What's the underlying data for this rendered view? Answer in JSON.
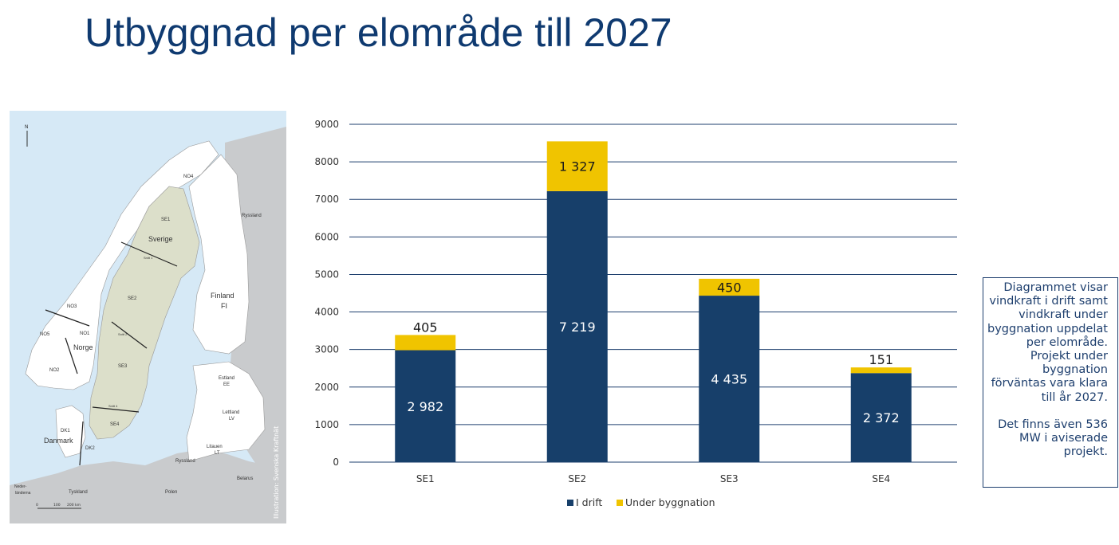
{
  "title": "Utbyggnad per elområde till 2027",
  "map": {
    "credit": "Illustration: Svenska Kraftnät",
    "compass": "N",
    "scale_labels": [
      "0",
      "100",
      "200 km"
    ],
    "region_labels": [
      "NO4",
      "SE1",
      "Sverige",
      "Snitt 1",
      "SE2",
      "NO3",
      "NO1",
      "NO5",
      "Norge",
      "Snitt 2",
      "NO2",
      "SE3",
      "Snitt 4",
      "SE4",
      "DK1",
      "Danmark",
      "DK2"
    ],
    "country_labels": [
      "Ryssland",
      "Finland",
      "FI",
      "Estland",
      "EE",
      "Lettland",
      "LV",
      "Litauen",
      "LT",
      "Ryssland",
      "Belarus",
      "Polen",
      "Tyskland",
      "Neder-",
      "länderna"
    ],
    "colors": {
      "sea": "#d6e9f6",
      "sweden": "#dcdfca",
      "land": "#ffffff",
      "other": "#c9cbcd",
      "border": "#555555"
    }
  },
  "chart_data": {
    "type": "bar",
    "stacked": true,
    "categories": [
      "SE1",
      "SE2",
      "SE3",
      "SE4"
    ],
    "series": [
      {
        "name": "I drift",
        "values": [
          2982,
          7219,
          4435,
          2372
        ],
        "labels": [
          "2 982",
          "7 219",
          "4 435",
          "2 372"
        ],
        "color": "#173f6a"
      },
      {
        "name": "Under byggnation",
        "values": [
          405,
          1327,
          450,
          151
        ],
        "labels": [
          "405",
          "1 327",
          "450",
          "151"
        ],
        "color": "#f0c400"
      }
    ],
    "ylim": [
      0,
      9000
    ],
    "yticks": [
      "0",
      "1000",
      "2000",
      "3000",
      "4000",
      "5000",
      "6000",
      "7000",
      "8000",
      "9000"
    ],
    "grid": true,
    "legend_position": "bottom",
    "gridline_color": "#1e3f6e"
  },
  "note": {
    "paragraphs": [
      "Diagrammet visar vindkraft i drift samt vindkraft under byggnation uppdelat per elområde. Projekt under byggnation förväntas vara klara till år 2027.",
      "Det finns även 536 MW i aviserade projekt."
    ]
  }
}
